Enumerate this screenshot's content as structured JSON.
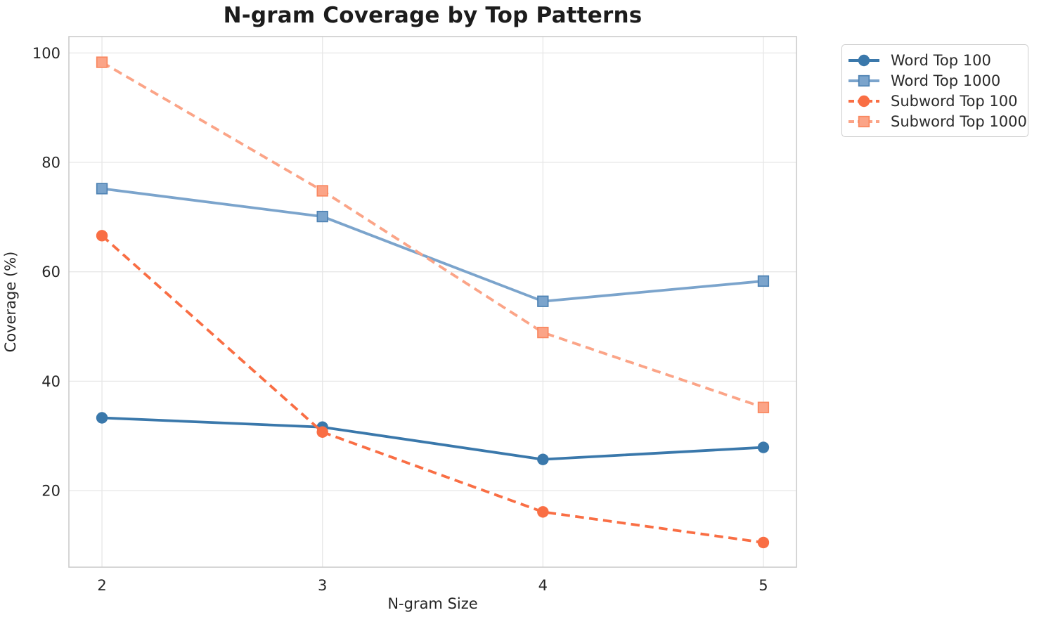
{
  "title": "N-gram Coverage by Top Patterns",
  "chart_data": {
    "type": "line",
    "title": "N-gram Coverage by Top Patterns",
    "xlabel": "N-gram Size",
    "ylabel": "Coverage (%)",
    "x": [
      2,
      3,
      4,
      5
    ],
    "xticks": [
      2,
      3,
      4,
      5
    ],
    "yticks": [
      20,
      40,
      60,
      80,
      100
    ],
    "xlim": [
      1.85,
      5.15
    ],
    "ylim": [
      6.0,
      103.0
    ],
    "grid": true,
    "legend_position": "outside-top-right",
    "series": [
      {
        "name": "Word Top 100",
        "values": [
          33.3,
          31.6,
          25.7,
          27.9
        ],
        "color": "#3a78ab",
        "marker": "circle",
        "line_style": "solid"
      },
      {
        "name": "Word Top 1000",
        "values": [
          75.2,
          70.1,
          54.6,
          58.3
        ],
        "color": "#7ba4cc",
        "marker": "square",
        "marker_edge": "#4d82b3",
        "line_style": "solid"
      },
      {
        "name": "Subword Top 100",
        "values": [
          66.6,
          30.7,
          16.1,
          10.5
        ],
        "color": "#f96e44",
        "marker": "circle",
        "line_style": "dashed"
      },
      {
        "name": "Subword Top 1000",
        "values": [
          98.3,
          74.8,
          48.9,
          35.2
        ],
        "color": "#fba487",
        "marker": "square",
        "marker_edge": "#f9875f",
        "line_style": "dashed"
      }
    ],
    "style": {
      "grid_color": "#e7e7e7",
      "spine_color": "#cccccc",
      "text_color": "#262626"
    }
  }
}
